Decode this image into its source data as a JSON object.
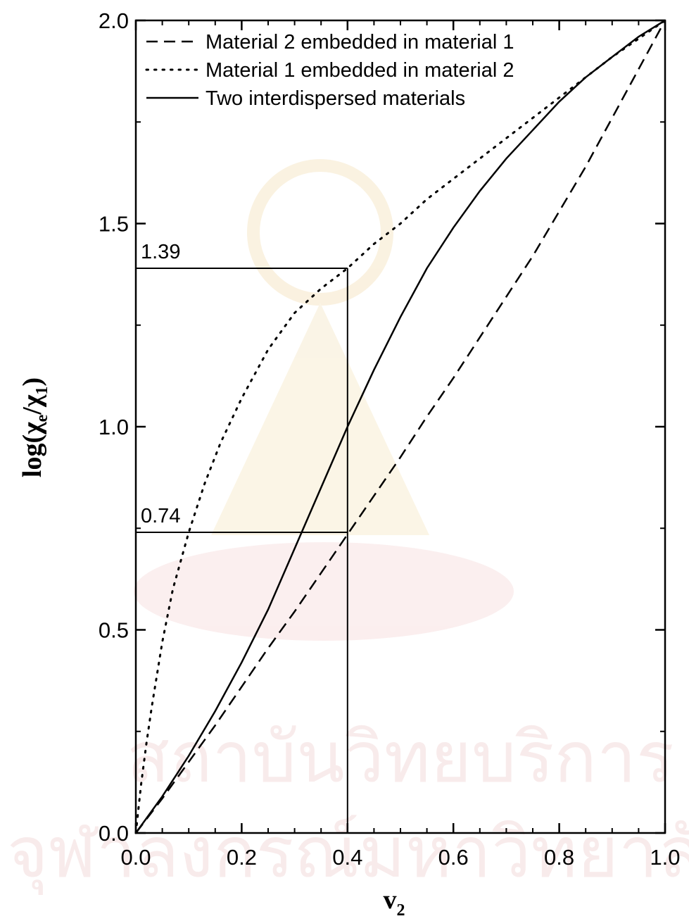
{
  "chart_data": {
    "type": "line",
    "title": "",
    "xlabel": "v",
    "xlabel_sub": "2",
    "ylabel": {
      "prefix": "log(χ",
      "sub1": "e",
      "mid": "/χ",
      "sub2": "1",
      "suffix": ")"
    },
    "xlim": [
      0.0,
      1.0
    ],
    "ylim": [
      0.0,
      2.0
    ],
    "x_ticks": [
      {
        "value": 0.0,
        "label": "0.0"
      },
      {
        "value": 0.2,
        "label": "0.2"
      },
      {
        "value": 0.4,
        "label": "0.4"
      },
      {
        "value": 0.6,
        "label": "0.6"
      },
      {
        "value": 0.8,
        "label": "0.8"
      },
      {
        "value": 1.0,
        "label": "1.0"
      }
    ],
    "y_ticks": [
      {
        "value": 0.0,
        "label": "0.0"
      },
      {
        "value": 0.5,
        "label": "0.5"
      },
      {
        "value": 1.0,
        "label": "1.0"
      },
      {
        "value": 1.5,
        "label": "1.5"
      },
      {
        "value": 2.0,
        "label": "2.0"
      }
    ],
    "x_minor_step": 0.05,
    "y_minor_step": 0.25,
    "grid": false,
    "legend_position": "top-left",
    "series": [
      {
        "name": "Material 2 embedded in material 1",
        "style": "dashed",
        "x": [
          0,
          0.05,
          0.1,
          0.15,
          0.2,
          0.25,
          0.3,
          0.35,
          0.4,
          0.45,
          0.5,
          0.55,
          0.6,
          0.65,
          0.7,
          0.75,
          0.8,
          0.85,
          0.9,
          0.95,
          1.0
        ],
        "y": [
          0,
          0.085,
          0.175,
          0.265,
          0.36,
          0.455,
          0.545,
          0.64,
          0.735,
          0.83,
          0.925,
          1.025,
          1.12,
          1.22,
          1.32,
          1.42,
          1.53,
          1.64,
          1.76,
          1.88,
          2.0
        ]
      },
      {
        "name": "Material 1 embedded in material 2",
        "style": "dotted",
        "x": [
          0,
          0.01,
          0.02,
          0.03,
          0.05,
          0.07,
          0.1,
          0.13,
          0.16,
          0.2,
          0.25,
          0.3,
          0.35,
          0.4,
          0.45,
          0.5,
          0.55,
          0.6,
          0.65,
          0.7,
          0.75,
          0.8,
          0.85,
          0.9,
          0.95,
          1.0
        ],
        "y": [
          0,
          0.12,
          0.22,
          0.31,
          0.47,
          0.6,
          0.74,
          0.86,
          0.96,
          1.07,
          1.19,
          1.28,
          1.34,
          1.39,
          1.45,
          1.5,
          1.56,
          1.61,
          1.66,
          1.71,
          1.76,
          1.81,
          1.86,
          1.91,
          1.955,
          2.0
        ]
      },
      {
        "name": "Two interdispersed materials",
        "style": "solid",
        "x": [
          0,
          0.05,
          0.1,
          0.15,
          0.2,
          0.25,
          0.3,
          0.35,
          0.4,
          0.45,
          0.5,
          0.55,
          0.6,
          0.65,
          0.7,
          0.75,
          0.8,
          0.85,
          0.9,
          0.95,
          1.0
        ],
        "y": [
          0,
          0.09,
          0.19,
          0.3,
          0.42,
          0.55,
          0.7,
          0.85,
          1.0,
          1.14,
          1.27,
          1.39,
          1.49,
          1.58,
          1.66,
          1.73,
          1.8,
          1.86,
          1.91,
          1.96,
          2.0
        ]
      }
    ],
    "reference_lines": [
      {
        "x1": 0.0,
        "y1": 1.39,
        "x2": 0.4,
        "y2": 1.39
      },
      {
        "x1": 0.0,
        "y1": 0.74,
        "x2": 0.4,
        "y2": 0.74
      },
      {
        "x1": 0.4,
        "y1": 0.0,
        "x2": 0.4,
        "y2": 1.39
      }
    ],
    "annotations": [
      {
        "text": "1.39",
        "x": 0.0,
        "y": 1.39
      },
      {
        "text": "0.74",
        "x": 0.0,
        "y": 0.74
      }
    ]
  }
}
